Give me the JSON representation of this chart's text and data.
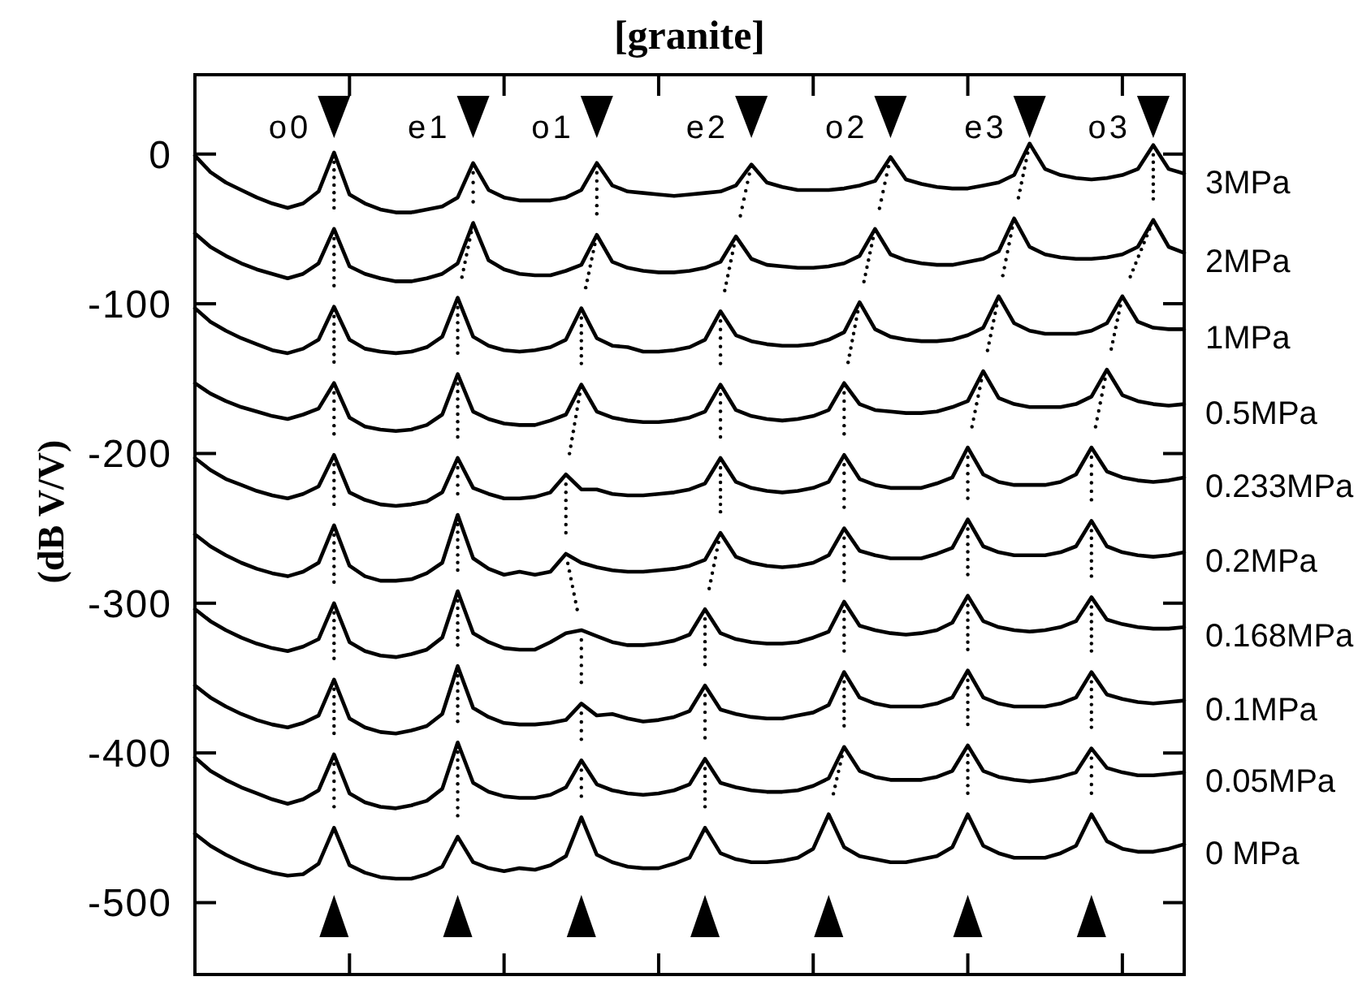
{
  "chart_data": {
    "type": "line",
    "title": "[granite]",
    "ylabel": "(dB V/V)",
    "tick_labels": "y",
    "legend": "right",
    "categories": [
      null,
      null,
      null,
      null,
      null,
      null,
      null,
      null,
      null,
      null,
      null,
      null,
      null,
      null,
      null,
      null,
      null,
      null,
      null,
      null,
      null,
      null,
      null,
      null,
      null,
      null,
      null,
      null,
      null,
      null,
      null,
      null,
      null,
      null,
      null,
      null,
      null,
      null,
      null,
      null,
      null,
      null,
      null,
      null,
      null,
      null,
      null,
      null,
      null,
      null,
      null,
      null,
      null,
      null,
      null,
      null,
      null,
      null,
      null,
      null,
      null,
      null,
      null,
      null,
      null
    ],
    "ylim": [
      -548,
      53
    ],
    "yticks": [
      0,
      -100,
      -200,
      -300,
      -400,
      -500
    ],
    "annotations": [
      "o0",
      "e1",
      "o1",
      "e2",
      "o2",
      "e3",
      "o3"
    ],
    "series": [
      {
        "name": "3MPa",
        "color": "#000000",
        "values": [
          -1,
          -12,
          -19,
          -24,
          -29,
          -33,
          -36,
          -33,
          -25,
          1,
          -27,
          -33,
          -37,
          -39,
          -39,
          -37,
          -35,
          -29,
          -6,
          -24,
          -29,
          -31,
          -31,
          -31,
          -29,
          -24,
          -6,
          -21,
          -25,
          -26,
          -27,
          -28,
          -27,
          -26,
          -25,
          -21,
          -7,
          -19,
          -22,
          -24,
          -24,
          -24,
          -23,
          -21,
          -18,
          -2,
          -17,
          -20,
          -22,
          -23,
          -23,
          -21,
          -19,
          -14,
          7,
          -10,
          -14,
          -16,
          -17,
          -16,
          -14,
          -10,
          6,
          -10,
          -13
        ]
      },
      {
        "name": "2MPa",
        "color": "#000000",
        "values": [
          -53,
          -62,
          -68,
          -73,
          -77,
          -80,
          -83,
          -80,
          -73,
          -50,
          -75,
          -80,
          -83,
          -85,
          -85,
          -83,
          -80,
          -73,
          -46,
          -71,
          -77,
          -80,
          -81,
          -81,
          -78,
          -74,
          -54,
          -72,
          -76,
          -78,
          -79,
          -79,
          -78,
          -76,
          -72,
          -55,
          -70,
          -74,
          -75,
          -76,
          -76,
          -75,
          -73,
          -68,
          -50,
          -67,
          -71,
          -73,
          -74,
          -74,
          -72,
          -70,
          -65,
          -43,
          -62,
          -67,
          -69,
          -70,
          -70,
          -69,
          -67,
          -62,
          -44,
          -62,
          -66
        ]
      },
      {
        "name": "1MPa",
        "color": "#000000",
        "values": [
          -103,
          -112,
          -118,
          -123,
          -127,
          -131,
          -133,
          -130,
          -124,
          -102,
          -124,
          -130,
          -132,
          -133,
          -132,
          -129,
          -122,
          -96,
          -122,
          -128,
          -131,
          -132,
          -131,
          -129,
          -124,
          -103,
          -123,
          -128,
          -129,
          -132,
          -132,
          -131,
          -129,
          -124,
          -105,
          -121,
          -125,
          -127,
          -128,
          -128,
          -127,
          -124,
          -119,
          -99,
          -117,
          -122,
          -124,
          -125,
          -125,
          -124,
          -121,
          -116,
          -95,
          -113,
          -118,
          -120,
          -120,
          -120,
          -118,
          -113,
          -95,
          -112,
          -116,
          -117,
          -117
        ]
      },
      {
        "name": "0.5MPa",
        "color": "#000000",
        "values": [
          -153,
          -160,
          -165,
          -169,
          -172,
          -175,
          -177,
          -174,
          -170,
          -153,
          -176,
          -182,
          -184,
          -185,
          -184,
          -181,
          -174,
          -147,
          -172,
          -177,
          -180,
          -181,
          -181,
          -178,
          -174,
          -154,
          -172,
          -176,
          -178,
          -179,
          -179,
          -178,
          -176,
          -172,
          -154,
          -171,
          -175,
          -177,
          -178,
          -177,
          -175,
          -171,
          -153,
          -167,
          -171,
          -172,
          -173,
          -173,
          -172,
          -169,
          -165,
          -145,
          -163,
          -167,
          -169,
          -169,
          -169,
          -167,
          -162,
          -144,
          -161,
          -165,
          -167,
          -168,
          -167
        ]
      },
      {
        "name": "0.233MPa",
        "color": "#000000",
        "values": [
          -203,
          -211,
          -217,
          -221,
          -225,
          -228,
          -230,
          -227,
          -222,
          -201,
          -226,
          -231,
          -234,
          -235,
          -234,
          -232,
          -226,
          -203,
          -223,
          -227,
          -230,
          -230,
          -229,
          -226,
          -214,
          -224,
          -224,
          -227,
          -228,
          -228,
          -227,
          -226,
          -224,
          -220,
          -203,
          -219,
          -223,
          -225,
          -226,
          -225,
          -223,
          -219,
          -201,
          -217,
          -221,
          -223,
          -223,
          -223,
          -220,
          -216,
          -196,
          -214,
          -219,
          -221,
          -221,
          -221,
          -219,
          -214,
          -196,
          -212,
          -216,
          -218,
          -219,
          -218,
          -216
        ]
      },
      {
        "name": "0.2MPa",
        "color": "#000000",
        "values": [
          -254,
          -262,
          -268,
          -273,
          -277,
          -280,
          -282,
          -279,
          -273,
          -248,
          -275,
          -282,
          -285,
          -285,
          -284,
          -280,
          -273,
          -241,
          -270,
          -277,
          -281,
          -279,
          -281,
          -279,
          -267,
          -273,
          -276,
          -278,
          -279,
          -279,
          -278,
          -277,
          -275,
          -271,
          -253,
          -269,
          -273,
          -275,
          -276,
          -275,
          -273,
          -268,
          -250,
          -265,
          -268,
          -270,
          -270,
          -270,
          -267,
          -263,
          -244,
          -262,
          -266,
          -268,
          -268,
          -268,
          -266,
          -262,
          -245,
          -262,
          -266,
          -268,
          -269,
          -268,
          -266
        ]
      },
      {
        "name": "0.168MPa",
        "color": "#000000",
        "values": [
          -304,
          -312,
          -318,
          -323,
          -327,
          -330,
          -332,
          -329,
          -324,
          -300,
          -326,
          -332,
          -335,
          -336,
          -334,
          -331,
          -323,
          -292,
          -320,
          -326,
          -330,
          -331,
          -331,
          -326,
          -320,
          -318,
          -322,
          -326,
          -328,
          -328,
          -327,
          -325,
          -321,
          -304,
          -320,
          -324,
          -326,
          -327,
          -327,
          -326,
          -323,
          -319,
          -299,
          -315,
          -318,
          -320,
          -321,
          -320,
          -318,
          -313,
          -295,
          -312,
          -316,
          -318,
          -319,
          -318,
          -316,
          -312,
          -296,
          -311,
          -314,
          -316,
          -317,
          -317,
          -316
        ]
      },
      {
        "name": "0.1MPa",
        "color": "#000000",
        "values": [
          -355,
          -363,
          -369,
          -374,
          -378,
          -381,
          -383,
          -380,
          -375,
          -351,
          -377,
          -383,
          -386,
          -387,
          -385,
          -382,
          -374,
          -342,
          -370,
          -376,
          -380,
          -381,
          -381,
          -380,
          -378,
          -367,
          -375,
          -374,
          -377,
          -379,
          -378,
          -376,
          -372,
          -355,
          -371,
          -374,
          -376,
          -377,
          -377,
          -375,
          -373,
          -368,
          -346,
          -363,
          -367,
          -369,
          -369,
          -369,
          -367,
          -363,
          -345,
          -363,
          -367,
          -369,
          -369,
          -369,
          -367,
          -363,
          -346,
          -361,
          -364,
          -366,
          -367,
          -366,
          -365
        ]
      },
      {
        "name": "0.05MPa",
        "color": "#000000",
        "values": [
          -403,
          -412,
          -418,
          -423,
          -427,
          -431,
          -434,
          -431,
          -425,
          -401,
          -427,
          -433,
          -436,
          -437,
          -435,
          -432,
          -424,
          -393,
          -420,
          -426,
          -429,
          -430,
          -430,
          -428,
          -423,
          -405,
          -421,
          -425,
          -427,
          -428,
          -427,
          -425,
          -421,
          -404,
          -420,
          -423,
          -425,
          -426,
          -426,
          -425,
          -422,
          -417,
          -396,
          -412,
          -416,
          -418,
          -418,
          -418,
          -416,
          -412,
          -395,
          -412,
          -416,
          -418,
          -419,
          -418,
          -416,
          -413,
          -397,
          -410,
          -413,
          -415,
          -415,
          -414,
          -413
        ]
      },
      {
        "name": "0 MPa",
        "color": "#000000",
        "values": [
          -454,
          -462,
          -468,
          -473,
          -477,
          -480,
          -482,
          -481,
          -474,
          -450,
          -475,
          -480,
          -483,
          -484,
          -484,
          -481,
          -476,
          -456,
          -473,
          -477,
          -479,
          -477,
          -478,
          -475,
          -469,
          -443,
          -468,
          -473,
          -476,
          -477,
          -477,
          -474,
          -470,
          -450,
          -467,
          -471,
          -473,
          -473,
          -472,
          -470,
          -464,
          -441,
          -463,
          -469,
          -471,
          -473,
          -473,
          -471,
          -469,
          -463,
          -441,
          -462,
          -467,
          -470,
          -470,
          -470,
          -467,
          -462,
          -441,
          -459,
          -464,
          -466,
          -466,
          -464,
          -461
        ]
      }
    ]
  }
}
